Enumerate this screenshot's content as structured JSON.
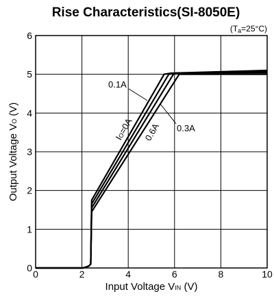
{
  "chart_data": {
    "type": "line",
    "title": "Rise Characteristics(SI-8050E)",
    "condition": {
      "prefix": "(T",
      "sub": "a",
      "suffix": "=25°C)"
    },
    "xlabel": {
      "main": "Input Voltage V",
      "sub": "IN",
      "unit": " (V)"
    },
    "ylabel": {
      "main": "Output Voltage V",
      "sub": "O",
      "unit": " (V)"
    },
    "xlim": [
      0,
      10
    ],
    "ylim": [
      0,
      6
    ],
    "xticks": [
      0,
      2,
      4,
      6,
      8,
      10
    ],
    "yticks": [
      0,
      1,
      2,
      3,
      4,
      5,
      6
    ],
    "grid": true,
    "series": [
      {
        "name": "Io=0A",
        "points": [
          [
            0,
            0
          ],
          [
            2.05,
            0
          ],
          [
            2.3,
            0.05
          ],
          [
            2.38,
            0.1
          ],
          [
            2.42,
            1.75
          ],
          [
            5.55,
            5.0
          ],
          [
            5.85,
            5.03
          ],
          [
            10,
            5.1
          ]
        ]
      },
      {
        "name": "0.1A",
        "points": [
          [
            0,
            0
          ],
          [
            2.05,
            0
          ],
          [
            2.3,
            0.05
          ],
          [
            2.38,
            0.1
          ],
          [
            2.42,
            1.65
          ],
          [
            5.75,
            5.0
          ],
          [
            6.0,
            5.03
          ],
          [
            10,
            5.07
          ]
        ]
      },
      {
        "name": "0.3A",
        "points": [
          [
            0,
            0
          ],
          [
            2.05,
            0
          ],
          [
            2.3,
            0.05
          ],
          [
            2.38,
            0.1
          ],
          [
            2.42,
            1.55
          ],
          [
            5.95,
            5.0
          ],
          [
            6.1,
            5.03
          ],
          [
            10,
            5.04
          ]
        ]
      },
      {
        "name": "0.6A",
        "points": [
          [
            0,
            0
          ],
          [
            2.05,
            0
          ],
          [
            2.3,
            0.05
          ],
          [
            2.38,
            0.1
          ],
          [
            2.42,
            1.45
          ],
          [
            6.2,
            5.0
          ],
          [
            10,
            5.0
          ]
        ]
      }
    ],
    "annotations": [
      {
        "text": "0.1A"
      },
      {
        "text_main": "I",
        "text_sub": "O",
        "text_suffix": "=0A"
      },
      {
        "text": "0.6A"
      },
      {
        "text": "0.3A"
      }
    ]
  }
}
